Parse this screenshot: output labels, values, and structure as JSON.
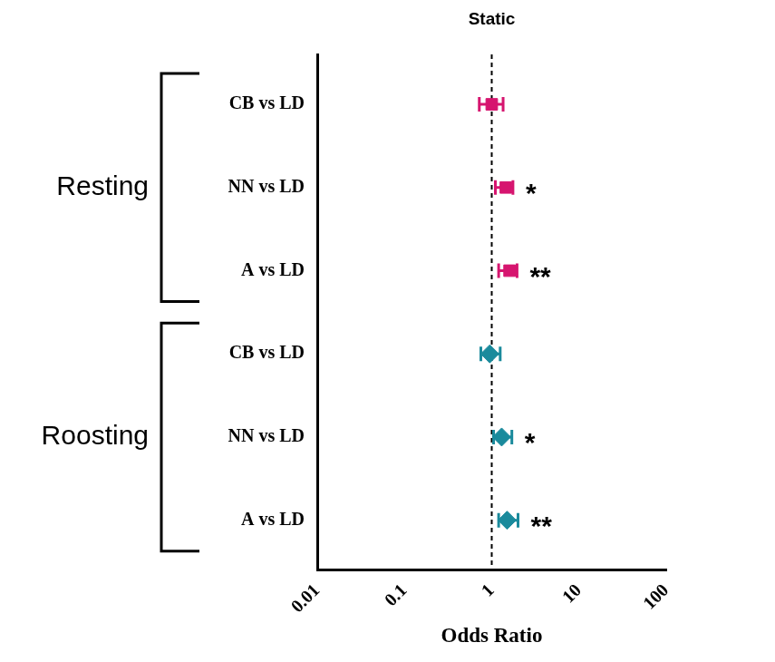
{
  "chart_data": {
    "type": "forest",
    "title": "Static",
    "x_label": "Odds Ratio",
    "log": "x",
    "xlim": [
      0.01,
      100
    ],
    "xticks": [
      0.01,
      0.1,
      1,
      10,
      100
    ],
    "grid": false,
    "reference_line": 1,
    "categories": [
      "CB vs LD",
      "NN vs LD",
      "A vs LD",
      "CB vs LD",
      "NN vs LD",
      "A vs LD"
    ],
    "series": [
      {
        "name": "Resting",
        "color": "#d6156f",
        "marker": "square",
        "values": [
          1.0,
          1.45,
          1.6,
          null,
          null,
          null
        ],
        "ci_low": [
          0.72,
          1.1,
          1.2,
          null,
          null,
          null
        ],
        "ci_high": [
          1.35,
          1.75,
          1.95,
          null,
          null,
          null
        ],
        "significance": [
          null,
          "*",
          "**",
          null,
          null,
          null
        ]
      },
      {
        "name": "Roosting",
        "color": "#1a8a9c",
        "marker": "diamond",
        "values": [
          null,
          null,
          null,
          0.95,
          1.3,
          1.5
        ],
        "ci_low": [
          null,
          null,
          null,
          0.75,
          1.05,
          1.2
        ],
        "ci_high": [
          null,
          null,
          null,
          1.25,
          1.7,
          2.0
        ],
        "significance": [
          null,
          null,
          null,
          null,
          "*",
          "**"
        ]
      }
    ]
  }
}
